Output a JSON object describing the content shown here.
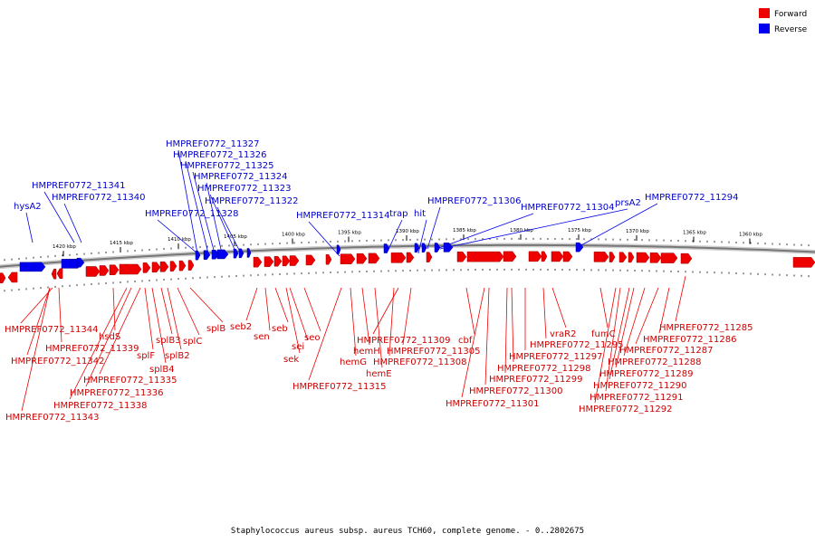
{
  "legend": [
    {
      "label": "Forward",
      "color": "#ee0000"
    },
    {
      "label": "Reverse",
      "color": "#0000ee"
    }
  ],
  "colors": {
    "forward": "#ee0000",
    "reverse": "#0000ee",
    "backbone": "#777777"
  },
  "caption": "Staphylococcus aureus subsp. aureus TCH60, complete genome. - 0..2802675",
  "ticks": [
    "1420 kbp",
    "1415 kbp",
    "1410 kbp",
    "1405 kbp",
    "1400 kbp",
    "1395 kbp",
    "1390 kbp",
    "1385 kbp",
    "1380 kbp",
    "1375 kbp",
    "1370 kbp",
    "1365 kbp",
    "1360 kbp"
  ],
  "reverse_labels": [
    "hysA2",
    "HMPREF0772_11341",
    "HMPREF0772_11340",
    "HMPREF0772_11327",
    "HMPREF0772_11326",
    "HMPREF0772_11325",
    "HMPREF0772_11324",
    "HMPREF0772_11323",
    "HMPREF0772_11322",
    "HMPREF0772_11328",
    "HMPREF0772_11314",
    "trap",
    "hit",
    "HMPREF0772_11306",
    "HMPREF0772_11304",
    "prsA2",
    "HMPREF0772_11294"
  ],
  "forward_labels": [
    "HMPREF0772_11344",
    "HMPREF0772_11339",
    "HMPREF0772_11342",
    "HMPREF0772_11343",
    "hsdS",
    "HMPREF0772_11335",
    "HMPREF0772_11336",
    "HMPREF0772_11338",
    "splF",
    "splB4",
    "splB3",
    "splB2",
    "splC",
    "splB",
    "seb2",
    "sen",
    "seb",
    "sei",
    "sek",
    "seo",
    "hemG",
    "hemH",
    "hemE",
    "HMPREF0772_11315",
    "HMPREF0772_11309",
    "HMPREF0772_11305",
    "HMPREF0772_11308",
    "cbf",
    "HMPREF0772_11301",
    "HMPREF0772_11300",
    "HMPREF0772_11299",
    "HMPREF0772_11298",
    "HMPREF0772_11297",
    "vraR2",
    "HMPREF0772_11295",
    "fumC",
    "HMPREF0772_11285",
    "HMPREF0772_11286",
    "HMPREF0772_11287",
    "HMPREF0772_11288",
    "HMPREF0772_11289",
    "HMPREF0772_11290",
    "HMPREF0772_11291",
    "HMPREF0772_11292"
  ]
}
